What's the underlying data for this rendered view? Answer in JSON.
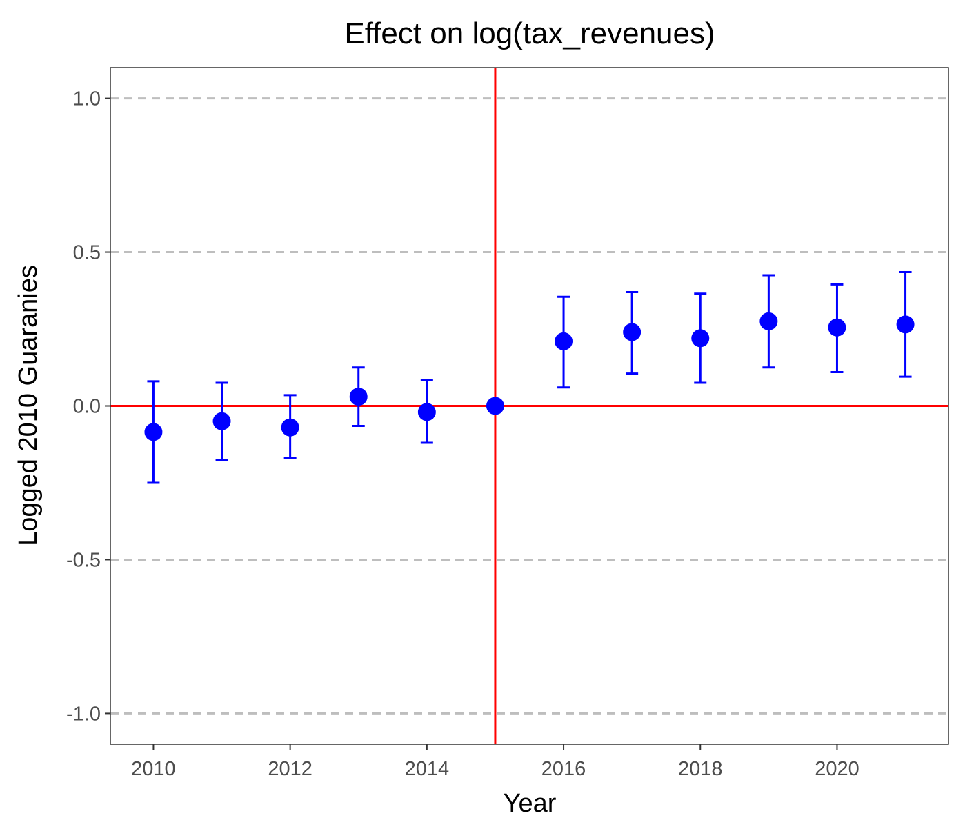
{
  "chart_data": {
    "type": "scatter",
    "title": "Effect on log(tax_revenues)",
    "xlabel": "Year",
    "ylabel": "Logged 2010 Guaranies",
    "xlim": [
      2009.37,
      2021.63
    ],
    "ylim": [
      -1.1,
      1.1
    ],
    "x_ticks": [
      2010,
      2012,
      2014,
      2016,
      2018,
      2020
    ],
    "y_ticks": [
      -1.0,
      -0.5,
      0.0,
      0.5,
      1.0
    ],
    "y_tick_labels": [
      "-1.0",
      "-0.5",
      "0.0",
      "0.5",
      "1.0"
    ],
    "grid": "horizontal dashed at major y ticks",
    "legend": "none",
    "reference_lines": {
      "horizontal_y": 0,
      "vertical_x": 2015,
      "color": "#ff0000"
    },
    "series": [
      {
        "color": "#0000ff",
        "x": [
          2010,
          2011,
          2012,
          2013,
          2014,
          2015,
          2016,
          2017,
          2018,
          2019,
          2020,
          2021
        ],
        "y": [
          -0.085,
          -0.05,
          -0.07,
          0.03,
          -0.02,
          0.0,
          0.21,
          0.24,
          0.22,
          0.275,
          0.255,
          0.265
        ],
        "ci_low": [
          -0.25,
          -0.175,
          -0.17,
          -0.065,
          -0.12,
          0.0,
          0.06,
          0.105,
          0.075,
          0.125,
          0.11,
          0.095
        ],
        "ci_high": [
          0.08,
          0.075,
          0.035,
          0.125,
          0.085,
          0.0,
          0.355,
          0.37,
          0.365,
          0.425,
          0.395,
          0.435
        ]
      }
    ]
  }
}
